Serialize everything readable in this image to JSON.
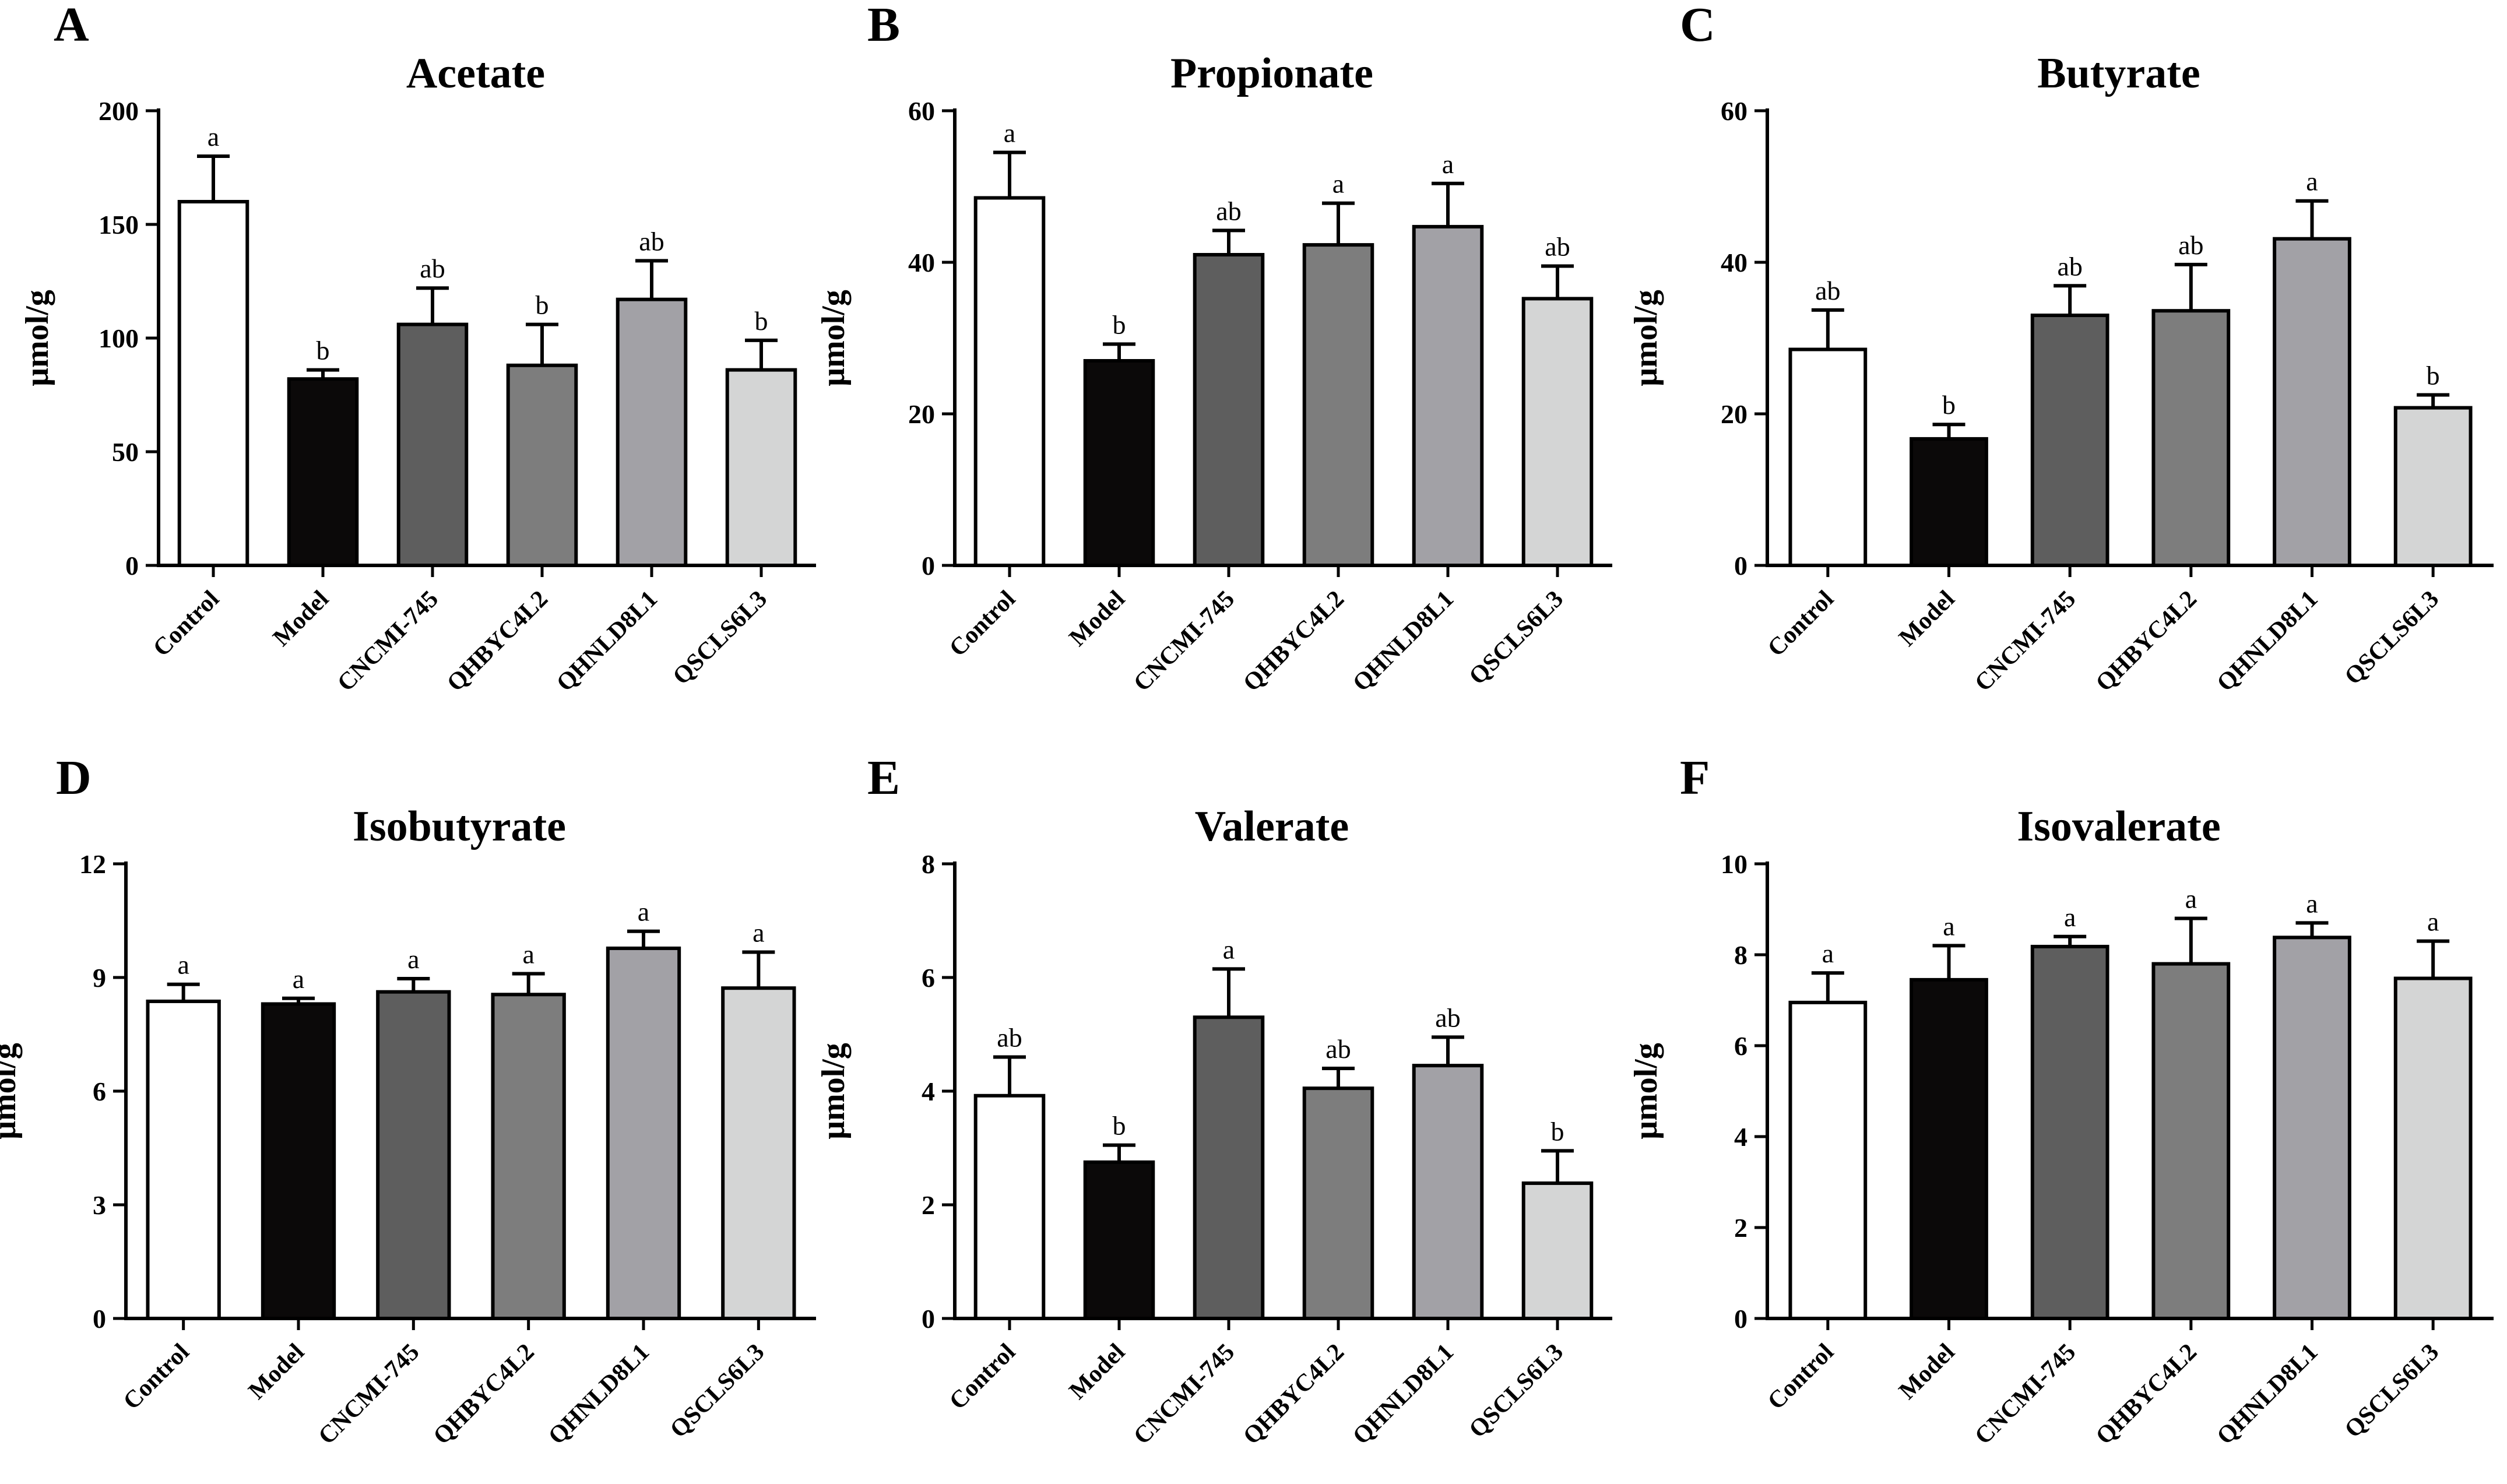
{
  "figure": {
    "bar_colors": [
      "#ffffff",
      "#0b0909",
      "#5e5e5e",
      "#7d7d7d",
      "#a2a1a6",
      "#d4d5d5"
    ]
  },
  "chart_data": [
    {
      "panel": "A",
      "type": "bar",
      "title": "Acetate",
      "ylabel": "μmol/g",
      "categories": [
        "Control",
        "Model",
        "CNCMI-745",
        "QHBYC4L2",
        "QHNLD8L1",
        "QSCLS6L3"
      ],
      "values": [
        160,
        82,
        106,
        88,
        117,
        86
      ],
      "errors": [
        20,
        4,
        16,
        18,
        17,
        13
      ],
      "significance": [
        "a",
        "b",
        "ab",
        "b",
        "ab",
        "b"
      ],
      "ylim": [
        0,
        200
      ],
      "yticks": [
        0,
        50,
        100,
        150,
        200
      ]
    },
    {
      "panel": "B",
      "type": "bar",
      "title": "Propionate",
      "ylabel": "μmol/g",
      "categories": [
        "Control",
        "Model",
        "CNCMI-745",
        "QHBYC4L2",
        "QHNLD8L1",
        "QSCLS6L3"
      ],
      "values": [
        48.5,
        27,
        41,
        42.3,
        44.7,
        35.2
      ],
      "errors": [
        6,
        2.2,
        3.2,
        5.5,
        5.7,
        4.3
      ],
      "significance": [
        "a",
        "b",
        "ab",
        "a",
        "a",
        "ab"
      ],
      "ylim": [
        0,
        60
      ],
      "yticks": [
        0,
        20,
        40,
        60
      ]
    },
    {
      "panel": "C",
      "type": "bar",
      "title": "Butyrate",
      "ylabel": "μmol/g",
      "categories": [
        "Control",
        "Model",
        "CNCMI-745",
        "QHBYC4L2",
        "QHNLD8L1",
        "QSCLS6L3"
      ],
      "values": [
        28.5,
        16.7,
        33,
        33.6,
        43.1,
        20.8
      ],
      "errors": [
        5.2,
        1.9,
        3.9,
        6.1,
        5,
        1.7
      ],
      "significance": [
        "ab",
        "b",
        "ab",
        "ab",
        "a",
        "b"
      ],
      "ylim": [
        0,
        60
      ],
      "yticks": [
        0,
        20,
        40,
        60
      ]
    },
    {
      "panel": "D",
      "type": "bar",
      "title": "Isobutyrate",
      "ylabel": "μmol/g",
      "categories": [
        "Control",
        "Model",
        "CNCMI-745",
        "QHBYC4L2",
        "QHNLD8L1",
        "QSCLS6L3"
      ],
      "values": [
        8.37,
        8.3,
        8.62,
        8.55,
        9.77,
        8.72
      ],
      "errors": [
        0.45,
        0.15,
        0.35,
        0.55,
        0.45,
        0.95
      ],
      "significance": [
        "a",
        "a",
        "a",
        "a",
        "a",
        "a"
      ],
      "ylim": [
        0,
        12
      ],
      "yticks": [
        0,
        3,
        6,
        9,
        12
      ]
    },
    {
      "panel": "E",
      "type": "bar",
      "title": "Valerate",
      "ylabel": "μmol/g",
      "categories": [
        "Control",
        "Model",
        "CNCMI-745",
        "QHBYC4L2",
        "QHNLD8L1",
        "QSCLS6L3"
      ],
      "values": [
        3.92,
        2.75,
        5.3,
        4.05,
        4.45,
        2.38
      ],
      "errors": [
        0.68,
        0.3,
        0.85,
        0.35,
        0.5,
        0.57
      ],
      "significance": [
        "ab",
        "b",
        "a",
        "ab",
        "ab",
        "b"
      ],
      "ylim": [
        0,
        8
      ],
      "yticks": [
        0,
        2,
        4,
        6,
        8
      ]
    },
    {
      "panel": "F",
      "type": "bar",
      "title": "Isovalerate",
      "ylabel": "μmol/g",
      "categories": [
        "Control",
        "Model",
        "CNCMI-745",
        "QHBYC4L2",
        "QHNLD8L1",
        "QSCLS6L3"
      ],
      "values": [
        6.95,
        7.45,
        8.18,
        7.8,
        8.38,
        7.48
      ],
      "errors": [
        0.65,
        0.75,
        0.22,
        1,
        0.32,
        0.82
      ],
      "significance": [
        "a",
        "a",
        "a",
        "a",
        "a",
        "a"
      ],
      "ylim": [
        0,
        10
      ],
      "yticks": [
        0,
        2,
        4,
        6,
        8,
        10
      ]
    }
  ]
}
